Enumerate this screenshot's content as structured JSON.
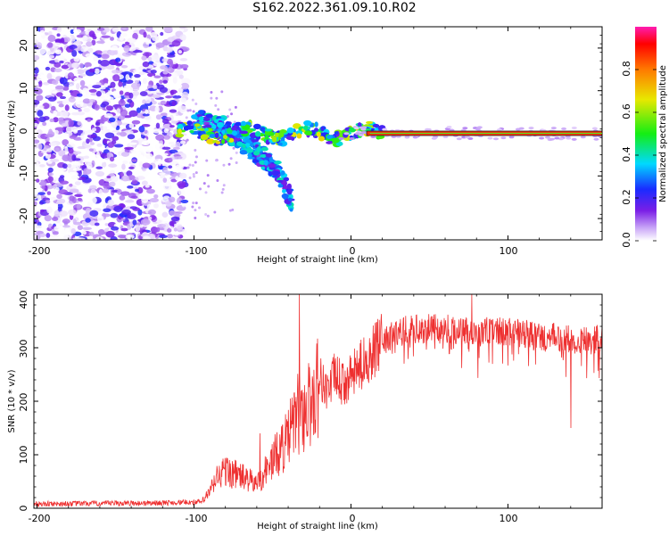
{
  "page": {
    "title": "S162.2022.361.09.10.R02"
  },
  "colors": {
    "snr_line": "#ee3030",
    "centerline": "#222222"
  },
  "chart_data": [
    {
      "type": "heatmap",
      "xlabel": "Height of straight line (km)",
      "ylabel": "Frequency (Hz)",
      "xlim": [
        -202,
        160
      ],
      "ylim": [
        -25,
        25
      ],
      "xticks": [
        -200,
        -100,
        0,
        100
      ],
      "yticks": [
        -20,
        -10,
        0,
        10,
        20
      ],
      "xtick_labels": [
        "-200",
        "-100",
        "0",
        "100"
      ],
      "ytick_labels": [
        "-20",
        "-10",
        "0",
        "10",
        "20"
      ],
      "colorbar": {
        "label": "Normalized spectral amplitude",
        "range": [
          0,
          1
        ],
        "ticks": [
          0.0,
          0.2,
          0.4,
          0.6,
          0.8
        ],
        "tick_labels": [
          "0.0",
          "0.2",
          "0.4",
          "0.6",
          "0.8"
        ],
        "colormap": "rainbow-white-to-magenta"
      },
      "features": {
        "noise_region_x": [
          -202,
          -105
        ],
        "signal_band_hz": 0,
        "descending_branch": [
          [
            -100,
            3
          ],
          [
            -80,
            1
          ],
          [
            -65,
            -3
          ],
          [
            -55,
            -6
          ],
          [
            -45,
            -10
          ],
          [
            -38,
            -16
          ]
        ]
      }
    },
    {
      "type": "line",
      "xlabel": "Height of straight line (km)",
      "ylabel": "SNR (10 * v/v)",
      "xlim": [
        -202,
        160
      ],
      "ylim": [
        0,
        400
      ],
      "xticks": [
        -200,
        -100,
        0,
        100
      ],
      "yticks": [
        0,
        100,
        200,
        300,
        400
      ],
      "xtick_labels": [
        "-200",
        "-100",
        "0",
        "100"
      ],
      "ytick_labels": [
        "0",
        "100",
        "200",
        "300",
        "400"
      ],
      "series": [
        {
          "name": "SNR",
          "envelope": {
            "x": [
              -202,
              -120,
              -95,
              -90,
              -85,
              -80,
              -70,
              -60,
              -50,
              -40,
              -35,
              -30,
              -25,
              -20,
              -15,
              -10,
              -5,
              0,
              10,
              20,
              30,
              40,
              60,
              80,
              100,
              120,
              140,
              160
            ],
            "y": [
              8,
              10,
              12,
              30,
              60,
              70,
              60,
              45,
              90,
              130,
              175,
              180,
              200,
              245,
              220,
              250,
              230,
              245,
              280,
              310,
              330,
              335,
              335,
              330,
              330,
              320,
              315,
              315
            ]
          },
          "spikes": [
            {
              "x": -33,
              "y": 400
            },
            {
              "x": -58,
              "y": 140
            },
            {
              "x": 77,
              "y": 400
            },
            {
              "x": 140,
              "y": 150
            }
          ]
        }
      ]
    }
  ]
}
